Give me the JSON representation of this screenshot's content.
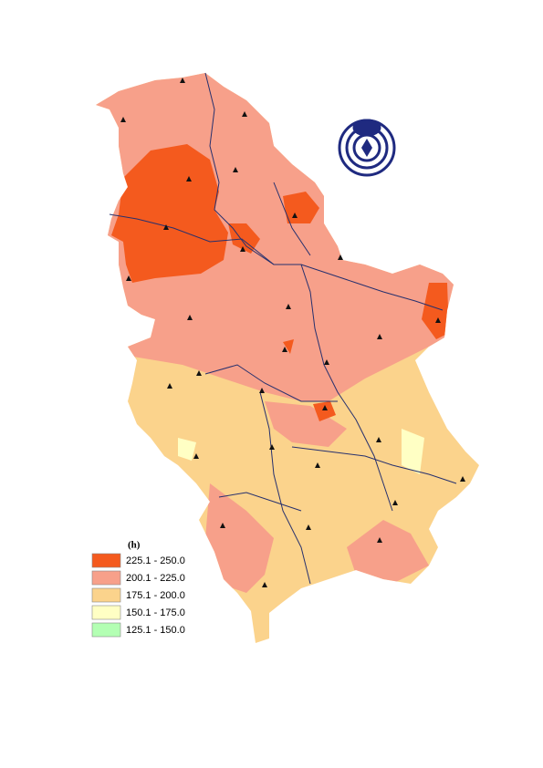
{
  "legend": {
    "title": "(h)",
    "items": [
      {
        "label": "225.1 - 250.0",
        "color": "#f45a1e"
      },
      {
        "label": "200.1 - 225.0",
        "color": "#f7a08a"
      },
      {
        "label": "175.1 - 200.0",
        "color": "#fbd38c"
      },
      {
        "label": "150.1 - 175.0",
        "color": "#ffffc4"
      },
      {
        "label": "125.1 - 150.0",
        "color": "#b3ffb3"
      }
    ]
  }
}
